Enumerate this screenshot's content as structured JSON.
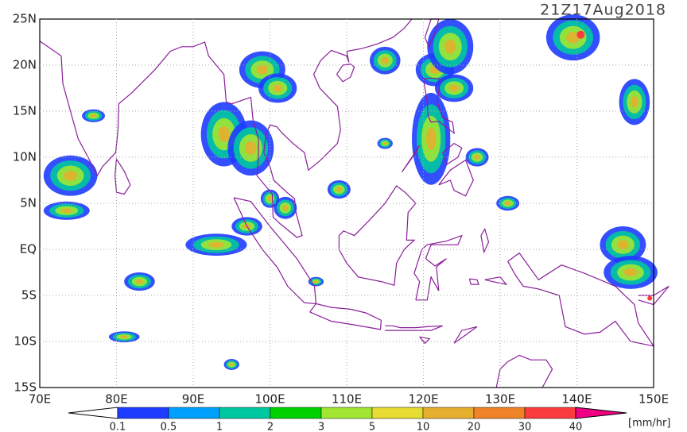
{
  "title": "21Z17Aug2018",
  "lon_labels": [
    "70E",
    "80E",
    "90E",
    "100E",
    "110E",
    "120E",
    "130E",
    "140E",
    "150E"
  ],
  "lat_labels": [
    "25N",
    "20N",
    "15N",
    "10N",
    "5N",
    "EQ",
    "5S",
    "10S",
    "15S"
  ],
  "colorbar": {
    "labels": [
      "0.1",
      "0.5",
      "1",
      "2",
      "3",
      "5",
      "10",
      "20",
      "30",
      "40"
    ],
    "colors": [
      "#ffffff",
      "#1e3cff",
      "#00a0ff",
      "#00c8a0",
      "#00d200",
      "#a0e632",
      "#e6dc32",
      "#e6af2d",
      "#f08228",
      "#fa3c3c",
      "#f00082"
    ],
    "unit": "[mm/hr]"
  }
}
